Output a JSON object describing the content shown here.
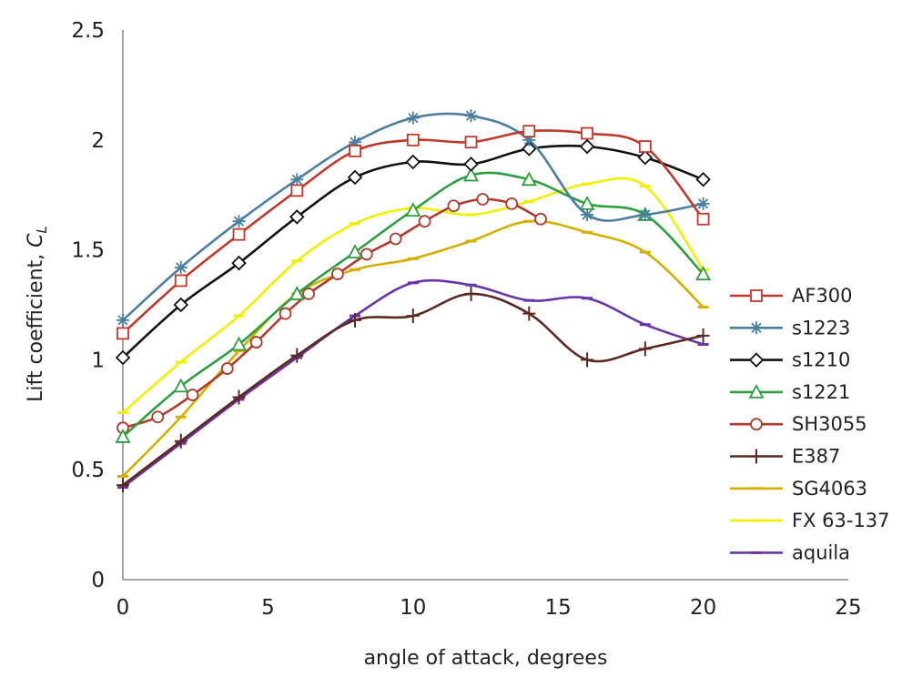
{
  "chart_data": {
    "type": "line",
    "xlabel": "angle of attack, degrees",
    "ylabel": "Lift coefficient, ",
    "ylabel_symbol": "C",
    "ylabel_subscript": "L",
    "xlim": [
      0,
      25
    ],
    "ylim": [
      0,
      2.5
    ],
    "xticks": [
      "0",
      "5",
      "10",
      "15",
      "20",
      "25"
    ],
    "yticks": [
      "0",
      "0.5",
      "1",
      "1.5",
      "2",
      "2.5"
    ],
    "grid": false,
    "legend_position": "right",
    "series": [
      {
        "name": "AF300",
        "color": "#c0392b",
        "marker": "square",
        "x": [
          0,
          2,
          4,
          6,
          8,
          10,
          12,
          14,
          16,
          18,
          20
        ],
        "y": [
          1.12,
          1.36,
          1.57,
          1.77,
          1.95,
          2.0,
          1.99,
          2.04,
          2.03,
          1.97,
          1.64
        ]
      },
      {
        "name": "s1223",
        "color": "#4a7fa0",
        "marker": "asterisk",
        "x": [
          0,
          2,
          4,
          6,
          8,
          10,
          12,
          14,
          16,
          18,
          20
        ],
        "y": [
          1.18,
          1.42,
          1.63,
          1.82,
          1.99,
          2.1,
          2.11,
          2.0,
          1.66,
          1.66,
          1.71
        ]
      },
      {
        "name": "s1210",
        "color": "#111111",
        "marker": "diamond",
        "x": [
          0,
          2,
          4,
          6,
          8,
          10,
          12,
          14,
          16,
          18,
          20
        ],
        "y": [
          1.01,
          1.25,
          1.44,
          1.65,
          1.83,
          1.9,
          1.89,
          1.96,
          1.97,
          1.92,
          1.82
        ]
      },
      {
        "name": "s1221",
        "color": "#2e9e3f",
        "marker": "triangle",
        "x": [
          0,
          2,
          4,
          6,
          8,
          10,
          12,
          14,
          16,
          18,
          20
        ],
        "y": [
          0.65,
          0.88,
          1.07,
          1.3,
          1.49,
          1.68,
          1.84,
          1.82,
          1.71,
          1.66,
          1.39
        ]
      },
      {
        "name": "SH3055",
        "color": "#b03a2e",
        "marker": "circle",
        "x": [
          0,
          1.2,
          2.4,
          3.6,
          4.6,
          5.6,
          6.4,
          7.4,
          8.4,
          9.4,
          10.4,
          11.4,
          12.4,
          13.4,
          14.4
        ],
        "y": [
          0.69,
          0.74,
          0.84,
          0.96,
          1.08,
          1.21,
          1.3,
          1.39,
          1.48,
          1.55,
          1.63,
          1.7,
          1.73,
          1.71,
          1.64
        ]
      },
      {
        "name": "E387",
        "color": "#5a2a22",
        "marker": "plus",
        "x": [
          0,
          2,
          4,
          6,
          8,
          10,
          12,
          14,
          16,
          18,
          20
        ],
        "y": [
          0.43,
          0.63,
          0.83,
          1.02,
          1.18,
          1.2,
          1.3,
          1.21,
          1.0,
          1.05,
          1.11
        ]
      },
      {
        "name": "SG4063",
        "color": "#d4b000",
        "marker": "dash",
        "x": [
          0,
          2,
          4,
          6,
          8,
          10,
          12,
          14,
          16,
          18,
          20
        ],
        "y": [
          0.47,
          0.74,
          1.04,
          1.3,
          1.41,
          1.46,
          1.54,
          1.63,
          1.58,
          1.49,
          1.24
        ]
      },
      {
        "name": "FX 63-137",
        "color": "#f2f000",
        "marker": "dash",
        "x": [
          0,
          2,
          4,
          6,
          8,
          10,
          12,
          14,
          16,
          18,
          20
        ],
        "y": [
          0.76,
          0.99,
          1.2,
          1.45,
          1.62,
          1.69,
          1.66,
          1.72,
          1.8,
          1.79,
          1.41
        ]
      },
      {
        "name": "aquila",
        "color": "#6a35a8",
        "marker": "dash",
        "x": [
          0,
          2,
          4,
          6,
          8,
          10,
          12,
          14,
          16,
          18,
          20
        ],
        "y": [
          0.42,
          0.62,
          0.82,
          1.01,
          1.2,
          1.35,
          1.34,
          1.27,
          1.28,
          1.16,
          1.07
        ]
      }
    ]
  }
}
